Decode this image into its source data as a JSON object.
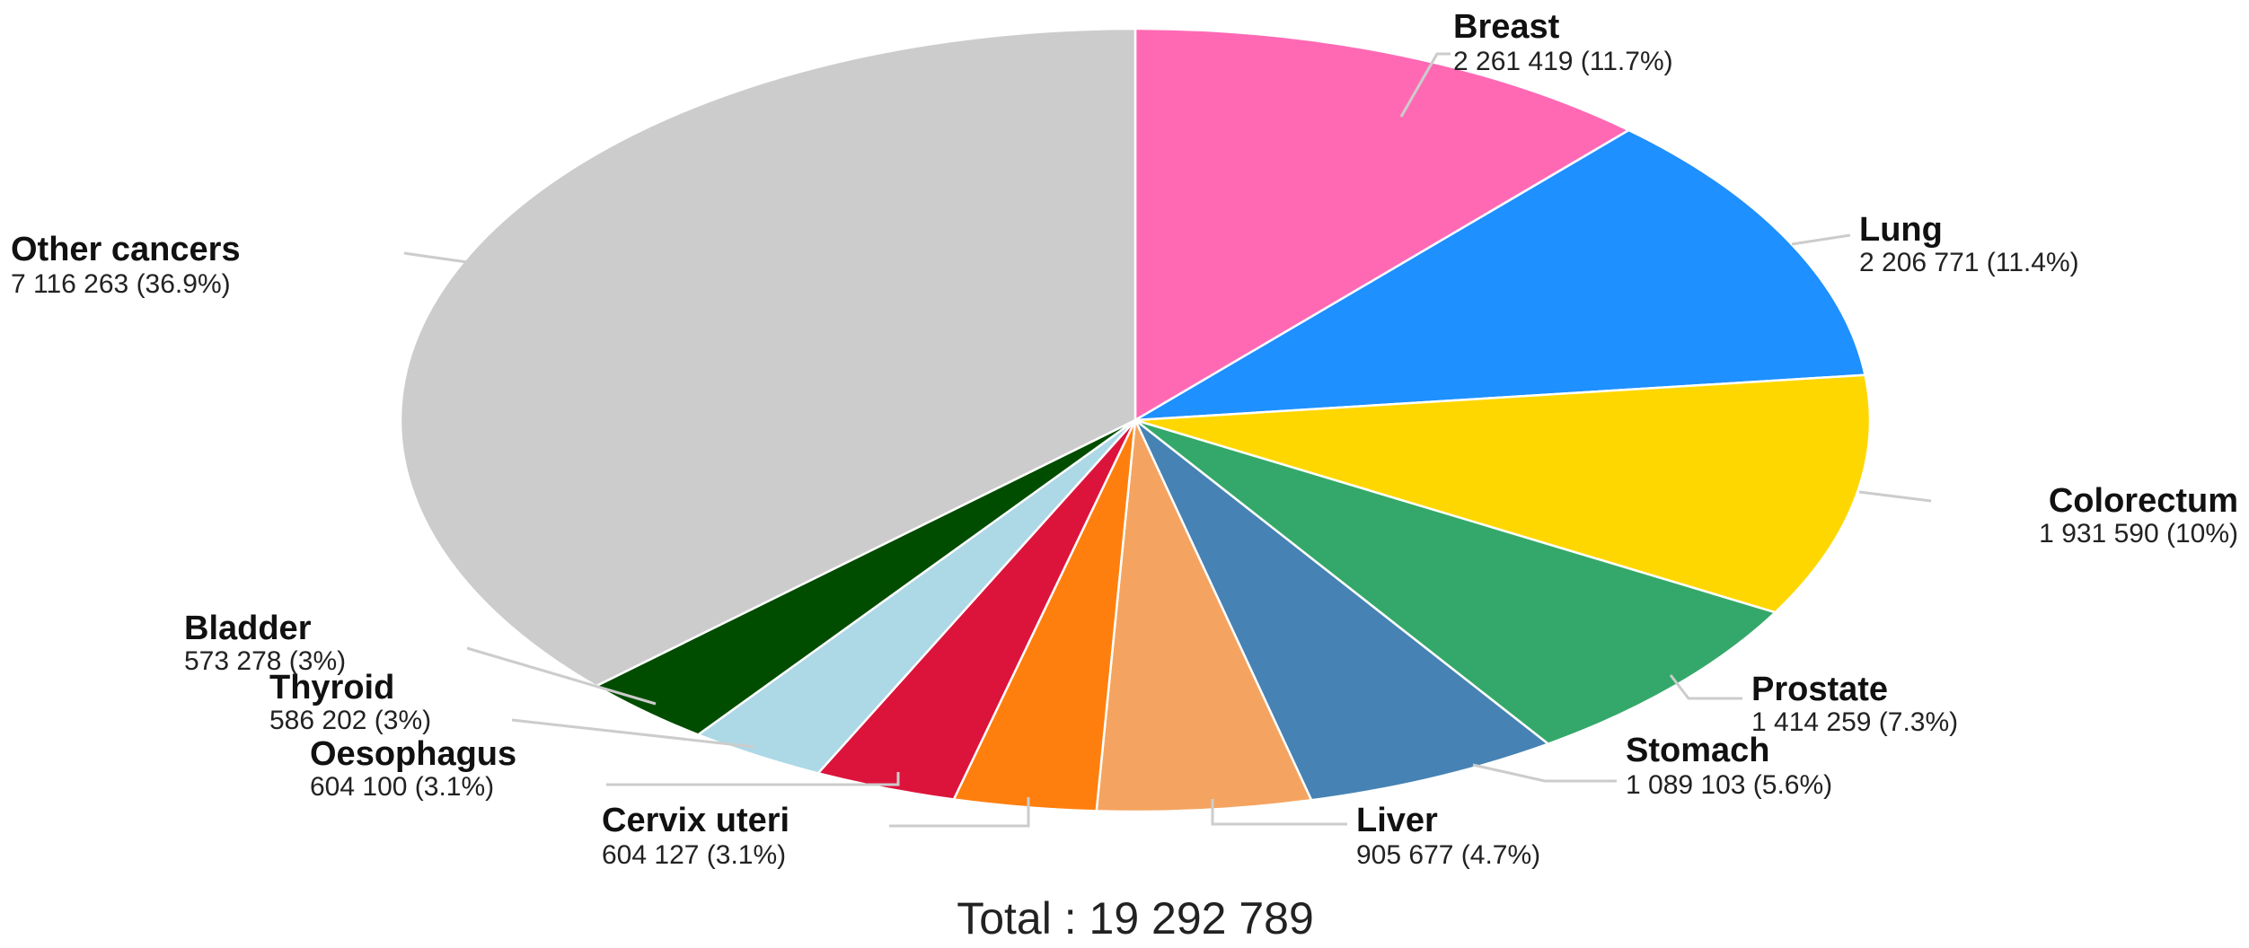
{
  "chart_data": {
    "type": "pie",
    "title": "",
    "total_label": "Total : 19 292 789",
    "slices": [
      {
        "name": "Breast",
        "value": 2261419,
        "value_label": "2 261 419 (11.7%)",
        "color": "#ff69b4"
      },
      {
        "name": "Lung",
        "value": 2206771,
        "value_label": "2 206 771 (11.4%)",
        "color": "#1e90ff"
      },
      {
        "name": "Colorectum",
        "value": 1931590,
        "value_label": "1 931 590 (10%)",
        "color": "#ffd700"
      },
      {
        "name": "Prostate",
        "value": 1414259,
        "value_label": "1 414 259 (7.3%)",
        "color": "#34a86a"
      },
      {
        "name": "Stomach",
        "value": 1089103,
        "value_label": "1 089 103 (5.6%)",
        "color": "#4682b4"
      },
      {
        "name": "Liver",
        "value": 905677,
        "value_label": "905 677 (4.7%)",
        "color": "#f4a460"
      },
      {
        "name": "Cervix uteri",
        "value": 604127,
        "value_label": "604 127 (3.1%)",
        "color": "#ff7f0e"
      },
      {
        "name": "Oesophagus",
        "value": 604100,
        "value_label": "604 100 (3.1%)",
        "color": "#dc143c"
      },
      {
        "name": "Thyroid",
        "value": 586202,
        "value_label": "586 202 (3%)",
        "color": "#add8e6"
      },
      {
        "name": "Bladder",
        "value": 573278,
        "value_label": "573 278 (3%)",
        "color": "#004d00"
      },
      {
        "name": "Other cancers",
        "value": 7116263,
        "value_label": "7 116 263 (36.9%)",
        "color": "#cccccc"
      }
    ]
  }
}
